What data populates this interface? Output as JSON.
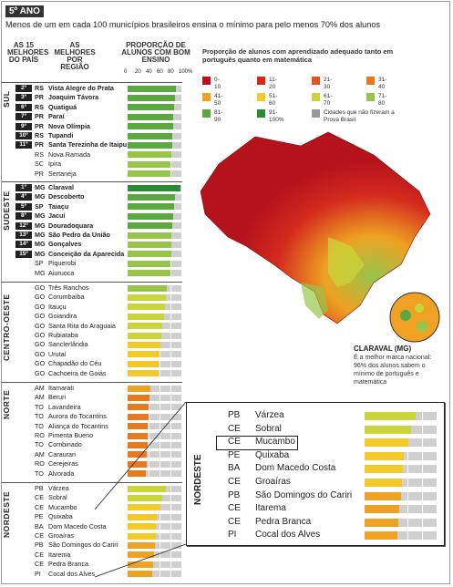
{
  "header": {
    "grade": "5º ANO",
    "subtitle": "Menos de um em cada 100 municípios brasileiros ensina o mínimo para pelo menos 70% dos alunos"
  },
  "columns": {
    "best_country": "AS 15 MELHORES DO PAÍS",
    "best_region": "AS MELHORES POR REGIÃO",
    "proportion": "PROPORÇÃO DE ALUNOS COM BOM ENSINO",
    "ticks": [
      "0",
      "20",
      "40",
      "60",
      "80",
      "100%"
    ]
  },
  "map_legend": {
    "title": "Proporção de alunos com aprendizado adequado tanto em português quanto em matemática",
    "items": [
      {
        "label": "0-10",
        "color": "#b5121b"
      },
      {
        "label": "11-20",
        "color": "#d42a1e"
      },
      {
        "label": "21-30",
        "color": "#e0561f"
      },
      {
        "label": "31-40",
        "color": "#e77a1f"
      },
      {
        "label": "41-50",
        "color": "#eea122"
      },
      {
        "label": "51-60",
        "color": "#f1c928"
      },
      {
        "label": "61-70",
        "color": "#c8d63a"
      },
      {
        "label": "71-80",
        "color": "#97c54a"
      },
      {
        "label": "81-90",
        "color": "#5aa83f"
      },
      {
        "label": "91-100%",
        "color": "#2c8a34"
      },
      {
        "label": "Cidades que não fizeram a Prova Brasil",
        "color": "#999999"
      }
    ]
  },
  "annotation": {
    "title": "CLARAVAL (MG)",
    "text": "É a melhor marca nacional: 96% dos alunos sabem o mínimo de português e matemática"
  },
  "colors": {
    "neutral_bar": "#cfcfcf",
    "dark": "#222222"
  },
  "chart_data": {
    "type": "bar",
    "orientation": "horizontal",
    "xlim": [
      0,
      100
    ],
    "regions": [
      {
        "name": "SUL",
        "rows": [
          {
            "rank": "2º",
            "state": "RS",
            "city": "Vista Alegre do Prata",
            "value": 88
          },
          {
            "rank": "3º",
            "state": "PR",
            "city": "Joaquim Távora",
            "value": 87
          },
          {
            "rank": "6º",
            "state": "RS",
            "city": "Quatiguá",
            "value": 85
          },
          {
            "rank": "7º",
            "state": "PR",
            "city": "Paraí",
            "value": 84
          },
          {
            "rank": "9º",
            "state": "PR",
            "city": "Nova Olímpia",
            "value": 83
          },
          {
            "rank": "10º",
            "state": "RS",
            "city": "Tupandi",
            "value": 82
          },
          {
            "rank": "11º",
            "state": "PR",
            "city": "Santa Terezinha de Itaipu",
            "value": 81
          },
          {
            "rank": "",
            "state": "RS",
            "city": "Nova Ramada",
            "value": 80
          },
          {
            "rank": "",
            "state": "SC",
            "city": "Ipira",
            "value": 79
          },
          {
            "rank": "",
            "state": "PR",
            "city": "Sertaneja",
            "value": 78
          }
        ]
      },
      {
        "name": "SUDESTE",
        "rows": [
          {
            "rank": "1º",
            "state": "MG",
            "city": "Claraval",
            "value": 96
          },
          {
            "rank": "4º",
            "state": "MG",
            "city": "Descoberto",
            "value": 86
          },
          {
            "rank": "5º",
            "state": "SP",
            "city": "Taiaçu",
            "value": 85
          },
          {
            "rank": "8º",
            "state": "MG",
            "city": "Jacuí",
            "value": 84
          },
          {
            "rank": "12º",
            "state": "MG",
            "city": "Douradoquara",
            "value": 81
          },
          {
            "rank": "13º",
            "state": "MG",
            "city": "São Pedro da União",
            "value": 80
          },
          {
            "rank": "14º",
            "state": "MG",
            "city": "Gonçalves",
            "value": 80
          },
          {
            "rank": "15º",
            "state": "MG",
            "city": "Conceição da Aparecida",
            "value": 80
          },
          {
            "rank": "",
            "state": "SP",
            "city": "Piquerobi",
            "value": 79
          },
          {
            "rank": "",
            "state": "MG",
            "city": "Aiuruoca",
            "value": 79
          }
        ]
      },
      {
        "name": "CENTRO-OESTE",
        "rows": [
          {
            "rank": "",
            "state": "GO",
            "city": "Três Ranchos",
            "value": 72
          },
          {
            "rank": "",
            "state": "GO",
            "city": "Corumbaíba",
            "value": 70
          },
          {
            "rank": "",
            "state": "GO",
            "city": "Itauçu",
            "value": 68
          },
          {
            "rank": "",
            "state": "GO",
            "city": "Goiandira",
            "value": 66
          },
          {
            "rank": "",
            "state": "GO",
            "city": "Santa Rita do Araguaia",
            "value": 64
          },
          {
            "rank": "",
            "state": "GO",
            "city": "Rubiataba",
            "value": 62
          },
          {
            "rank": "",
            "state": "GO",
            "city": "Sanclerlândia",
            "value": 60
          },
          {
            "rank": "",
            "state": "GO",
            "city": "Urutaí",
            "value": 58
          },
          {
            "rank": "",
            "state": "GO",
            "city": "Chapadão do Céu",
            "value": 57
          },
          {
            "rank": "",
            "state": "GO",
            "city": "Cachoeira de Goiás",
            "value": 56
          }
        ]
      },
      {
        "name": "NORTE",
        "rows": [
          {
            "rank": "",
            "state": "AM",
            "city": "Itamarati",
            "value": 42
          },
          {
            "rank": "",
            "state": "AM",
            "city": "Beruri",
            "value": 40
          },
          {
            "rank": "",
            "state": "TO",
            "city": "Lavandeira",
            "value": 39
          },
          {
            "rank": "",
            "state": "TO",
            "city": "Aurora do Tocantins",
            "value": 38
          },
          {
            "rank": "",
            "state": "TO",
            "city": "Aliança do Tocantins",
            "value": 37
          },
          {
            "rank": "",
            "state": "RO",
            "city": "Pimenta Bueno",
            "value": 37
          },
          {
            "rank": "",
            "state": "TO",
            "city": "Combinado",
            "value": 36
          },
          {
            "rank": "",
            "state": "AM",
            "city": "Caraurari",
            "value": 35
          },
          {
            "rank": "",
            "state": "RO",
            "city": "Cerejeiras",
            "value": 35
          },
          {
            "rank": "",
            "state": "TO",
            "city": "Alvorada",
            "value": 34
          }
        ]
      },
      {
        "name": "NORDESTE",
        "rows": [
          {
            "rank": "",
            "state": "PB",
            "city": "Várzea",
            "value": 70
          },
          {
            "rank": "",
            "state": "CE",
            "city": "Sobral",
            "value": 64
          },
          {
            "rank": "",
            "state": "CE",
            "city": "Mucambo",
            "value": 60
          },
          {
            "rank": "",
            "state": "PE",
            "city": "Quixaba",
            "value": 54
          },
          {
            "rank": "",
            "state": "BA",
            "city": "Dom Macedo Costa",
            "value": 52
          },
          {
            "rank": "",
            "state": "CE",
            "city": "Groaíras",
            "value": 51
          },
          {
            "rank": "",
            "state": "PB",
            "city": "São Domingos do Cariri",
            "value": 50
          },
          {
            "rank": "",
            "state": "CE",
            "city": "Itarema",
            "value": 48
          },
          {
            "rank": "",
            "state": "CE",
            "city": "Pedra Branca",
            "value": 46
          },
          {
            "rank": "",
            "state": "PI",
            "city": "Cocal dos Alves",
            "value": 45
          }
        ]
      }
    ]
  }
}
